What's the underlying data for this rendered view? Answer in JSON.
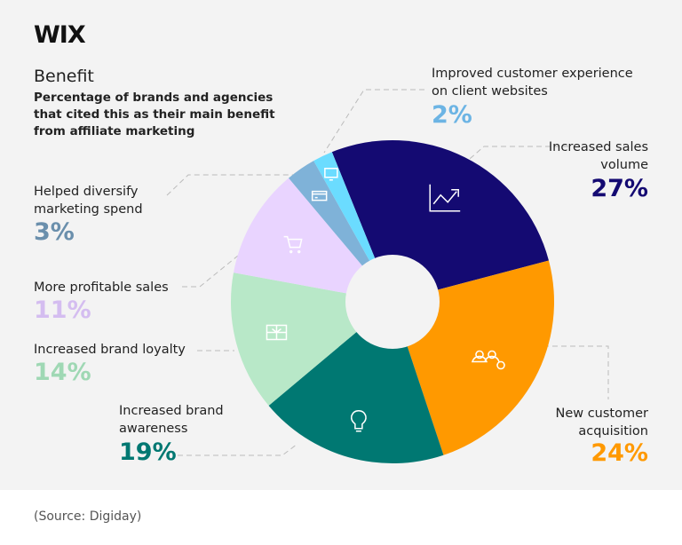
{
  "logo": "WIX",
  "source": "(Source: Digiday)",
  "chart_data": {
    "type": "pie",
    "donut": true,
    "title": "Benefit",
    "subtitle": "Percentage of brands and agencies that cited this as their main benefit from affiliate marketing",
    "slices": [
      {
        "label": "Increased sales volume",
        "value": 27,
        "pct_label": "27%",
        "color": "#140a72",
        "label_color": "#140a72",
        "icon": "chart-trend-icon"
      },
      {
        "label": "New customer acquisition",
        "value": 24,
        "pct_label": "24%",
        "color": "#ff9900",
        "label_color": "#ff9900",
        "icon": "add-users-icon"
      },
      {
        "label": "Increased brand awareness",
        "value": 19,
        "pct_label": "19%",
        "color": "#007872",
        "label_color": "#007872",
        "icon": "lightbulb-icon"
      },
      {
        "label": "Increased brand loyalty",
        "value": 14,
        "pct_label": "14%",
        "color": "#b8e8c8",
        "label_color": "#9fd8b4",
        "icon": "gift-card-icon"
      },
      {
        "label": "More profitable sales",
        "value": 11,
        "pct_label": "11%",
        "color": "#e9d4ff",
        "label_color": "#d4bdf0",
        "icon": "cart-icon"
      },
      {
        "label": "Helped diversify marketing spend",
        "value": 3,
        "pct_label": "3%",
        "color": "#7fb2d8",
        "label_color": "#6a8fac",
        "icon": "credit-card-icon"
      },
      {
        "label": "Improved customer experience on client websites",
        "value": 2,
        "pct_label": "2%",
        "color": "#6bdcff",
        "label_color": "#6cb4e4",
        "icon": "monitor-icon"
      }
    ]
  }
}
